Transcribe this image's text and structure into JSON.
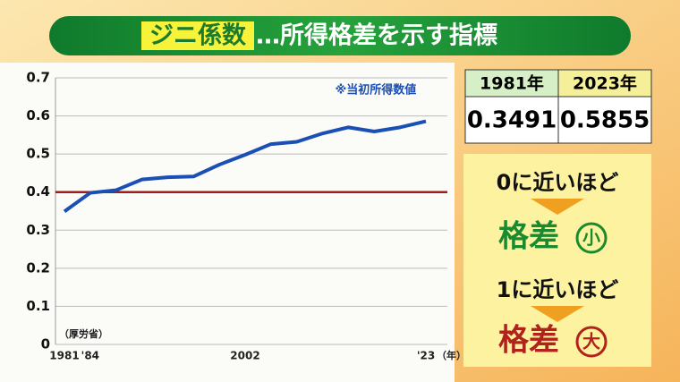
{
  "header": {
    "highlight": "ジニ係数",
    "title": "…所得格差を示す指標"
  },
  "chart_data": {
    "type": "line",
    "categories": [
      "1981",
      "'84",
      null,
      null,
      null,
      null,
      null,
      "2002",
      null,
      null,
      null,
      null,
      null,
      null,
      "'23"
    ],
    "x_label": "（年）",
    "series": [
      {
        "name": "ジニ係数",
        "color": "#1a4fb5",
        "values": [
          0.349,
          0.398,
          0.405,
          0.433,
          0.439,
          0.441,
          0.472,
          0.498,
          0.526,
          0.532,
          0.554,
          0.57,
          0.559,
          0.57,
          0.586
        ]
      }
    ],
    "ylim": [
      0,
      0.7
    ],
    "yticks": [
      0,
      0.1,
      0.2,
      0.3,
      0.4,
      0.5,
      0.6,
      0.7
    ],
    "grid": true,
    "reference_line": {
      "value": 0.4,
      "color": "#a31b1b"
    },
    "annotation": "※当初所得数値",
    "source": "（厚労省）"
  },
  "table": {
    "headers": [
      "1981年",
      "2023年"
    ],
    "rows": [
      [
        "0.3491",
        "0.5855"
      ]
    ]
  },
  "panel": {
    "low": "0に近いほど",
    "low_word": "格差",
    "low_mark": "小",
    "high": "1に近いほど",
    "high_word": "格差",
    "high_mark": "大"
  }
}
